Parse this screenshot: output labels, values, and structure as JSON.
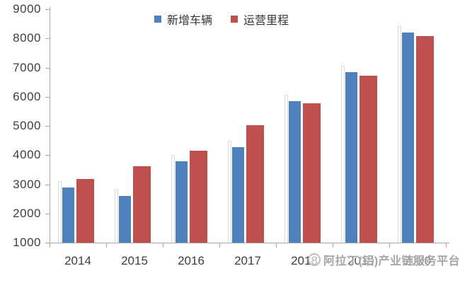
{
  "chart_data": {
    "type": "bar",
    "title": "",
    "categories": [
      "2014",
      "2015",
      "2016",
      "2017",
      "2018",
      "2019",
      "2020"
    ],
    "series": [
      {
        "name": "新增车辆",
        "key": "new-vehicles",
        "color": "#4f81bd",
        "values": [
          2900,
          2600,
          3800,
          4270,
          5850,
          6840,
          8200
        ]
      },
      {
        "name": "运营里程",
        "key": "operating-mileage",
        "color": "#c0504d",
        "values": [
          3170,
          3620,
          4150,
          5030,
          5780,
          6720,
          8090
        ]
      }
    ],
    "xlabel": "",
    "ylabel": "",
    "ylim": [
      1000,
      9000
    ],
    "yticks": [
      1000,
      2000,
      3000,
      4000,
      5000,
      6000,
      7000,
      8000,
      9000
    ],
    "grid": false,
    "legend_position": "top-center",
    "axis_color": "#a6a6a6",
    "text_color": "#3f3f3f"
  },
  "watermark": {
    "icon": "circle-logo",
    "text": "阿拉丁(铝)产业链服务平台"
  }
}
